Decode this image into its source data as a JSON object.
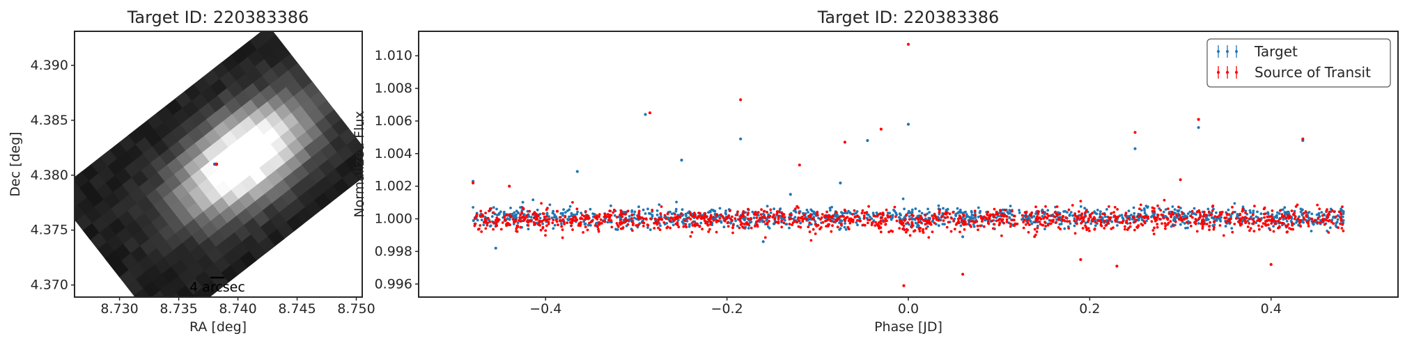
{
  "colors": {
    "target": "#1f77b4",
    "transit": "#ff0000",
    "axes": "#262626"
  },
  "chart_data": [
    {
      "type": "heatmap",
      "title": "Target ID: 220383386",
      "xlabel": "RA [deg]",
      "ylabel": "Dec [deg]",
      "xlim": [
        8.7262,
        8.7505
      ],
      "ylim": [
        4.3689,
        4.3931
      ],
      "xticks": [
        8.73,
        8.735,
        8.74,
        8.745,
        8.75
      ],
      "xtick_labels": [
        "8.730",
        "8.735",
        "8.740",
        "8.745",
        "8.750"
      ],
      "yticks": [
        4.37,
        4.375,
        4.38,
        4.385,
        4.39
      ],
      "ytick_labels": [
        "4.370",
        "4.375",
        "4.380",
        "4.385",
        "4.390"
      ],
      "colormap": "gray",
      "peak_brightness_at": [
        8.7405,
        4.3815
      ],
      "target_marker": [
        8.7381,
        4.381
      ],
      "scalebar_label": "4 arcsec"
    },
    {
      "type": "scatter",
      "title": "Target ID: 220383386",
      "xlabel": "Phase [JD]",
      "ylabel": "Normalized Flux",
      "xlim": [
        -0.54,
        0.54
      ],
      "ylim": [
        0.9952,
        1.0115
      ],
      "xticks": [
        -0.4,
        -0.2,
        0.0,
        0.2,
        0.4
      ],
      "xtick_labels": [
        "−0.4",
        "−0.2",
        "0.0",
        "0.2",
        "0.4"
      ],
      "yticks": [
        0.996,
        0.998,
        1.0,
        1.002,
        1.004,
        1.006,
        1.008,
        1.01
      ],
      "ytick_labels": [
        "0.996",
        "0.998",
        "1.000",
        "1.002",
        "1.004",
        "1.006",
        "1.008",
        "1.010"
      ],
      "legend_position": "top-right",
      "series": [
        {
          "name": "Target",
          "color": "#1f77b4",
          "baseline": 1.0001,
          "scatter_sigma": 0.0003,
          "phase_range": [
            -0.48,
            0.48
          ],
          "outliers": [
            [
              -0.48,
              1.0023
            ],
            [
              -0.365,
              1.0029
            ],
            [
              -0.29,
              1.0064
            ],
            [
              -0.25,
              1.0036
            ],
            [
              -0.185,
              1.0049
            ],
            [
              -0.13,
              1.0015
            ],
            [
              -0.075,
              1.0022
            ],
            [
              -0.045,
              1.0048
            ],
            [
              0.0,
              1.0058
            ],
            [
              0.25,
              1.0043
            ],
            [
              0.32,
              1.0056
            ],
            [
              0.435,
              1.0048
            ],
            [
              -0.455,
              0.9982
            ],
            [
              -0.16,
              0.9986
            ],
            [
              0.06,
              0.9989
            ]
          ]
        },
        {
          "name": "Source of Transit",
          "color": "#ff0000",
          "baseline": 0.99995,
          "scatter_sigma": 0.00035,
          "phase_range": [
            -0.48,
            0.48
          ],
          "transit_center": 0.0,
          "transit_depth": 0.0004,
          "transit_halfwidth": 0.035,
          "outliers": [
            [
              -0.48,
              1.0022
            ],
            [
              -0.285,
              1.0065
            ],
            [
              -0.185,
              1.0073
            ],
            [
              -0.12,
              1.0033
            ],
            [
              -0.07,
              1.0047
            ],
            [
              -0.03,
              1.0055
            ],
            [
              0.0,
              1.0107
            ],
            [
              0.25,
              1.0053
            ],
            [
              0.32,
              1.0061
            ],
            [
              0.435,
              1.0049
            ],
            [
              0.3,
              1.0024
            ],
            [
              -0.44,
              1.002
            ],
            [
              -0.005,
              0.9959
            ],
            [
              0.06,
              0.9966
            ],
            [
              0.19,
              0.9975
            ],
            [
              0.23,
              0.9971
            ],
            [
              0.4,
              0.9972
            ]
          ]
        }
      ]
    }
  ]
}
